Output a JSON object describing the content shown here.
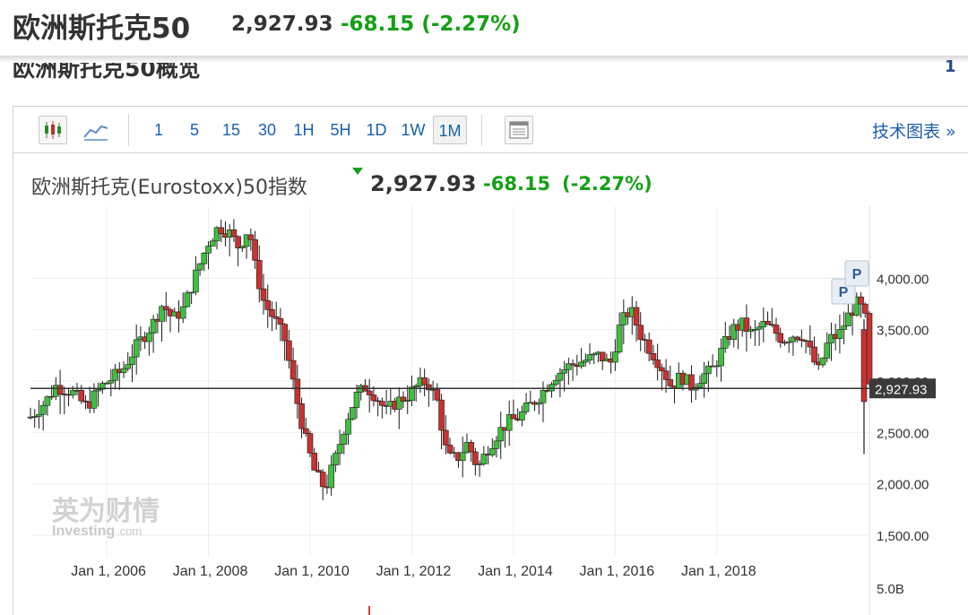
{
  "header": {
    "title": "欧洲斯托克50",
    "price": "2,927.93",
    "change": "-68.15 (-2.27%)"
  },
  "section": {
    "title": "欧洲斯托克50概览",
    "page_indicator": "1"
  },
  "toolbar": {
    "intervals": [
      "1",
      "5",
      "15",
      "30",
      "1H",
      "5H",
      "1D",
      "1W",
      "1M"
    ],
    "selected_interval": "1M",
    "tech_link": "技术图表 »"
  },
  "chart_header": {
    "name": "欧洲斯托克(Eurostoxx)50指数",
    "price": "2,927.93",
    "change": "-68.15",
    "change_pct": "(-2.27%)"
  },
  "watermark": {
    "cn": "英为财情",
    "en": "Investing",
    "suffix": ".com"
  },
  "colors": {
    "up": "#14a016",
    "down": "#e23b3b",
    "accent": "#1b5fad"
  },
  "chart_data": {
    "type": "candlestick",
    "x_tick_labels": [
      "Jan 1, 2006",
      "Jan 1, 2008",
      "Jan 1, 2010",
      "Jan 1, 2012",
      "Jan 1, 2014",
      "Jan 1, 2016",
      "Jan 1, 2018"
    ],
    "y_tick_labels": [
      "4,000.00",
      "3,500.00",
      "3,000.00",
      "2,500.00",
      "2,000.00",
      "1,500.00"
    ],
    "y_ticks": [
      4000,
      3500,
      3000,
      2500,
      2000,
      1500
    ],
    "ylim": [
      1300,
      4700
    ],
    "xlim": [
      2004.5,
      2021.0
    ],
    "current_price_label": "2,927.93",
    "current_price": 2927.93,
    "volume_label": "5.0B",
    "markers": [
      "P",
      "P"
    ],
    "series_close": [
      {
        "t": 2004.5,
        "v": 2650
      },
      {
        "t": 2004.8,
        "v": 2800
      },
      {
        "t": 2005.0,
        "v": 2950
      },
      {
        "t": 2005.3,
        "v": 2900
      },
      {
        "t": 2005.6,
        "v": 2750
      },
      {
        "t": 2005.9,
        "v": 2950
      },
      {
        "t": 2006.3,
        "v": 3100
      },
      {
        "t": 2006.6,
        "v": 3350
      },
      {
        "t": 2006.9,
        "v": 3550
      },
      {
        "t": 2007.1,
        "v": 3750
      },
      {
        "t": 2007.3,
        "v": 3600
      },
      {
        "t": 2007.5,
        "v": 3700
      },
      {
        "t": 2007.8,
        "v": 4100
      },
      {
        "t": 2008.0,
        "v": 4350
      },
      {
        "t": 2008.2,
        "v": 4500
      },
      {
        "t": 2008.4,
        "v": 4450
      },
      {
        "t": 2008.6,
        "v": 4300
      },
      {
        "t": 2008.8,
        "v": 4500
      },
      {
        "t": 2008.9,
        "v": 4150
      },
      {
        "t": 2009.1,
        "v": 3750
      },
      {
        "t": 2009.3,
        "v": 3600
      },
      {
        "t": 2009.5,
        "v": 3400
      },
      {
        "t": 2009.7,
        "v": 2900
      },
      {
        "t": 2009.9,
        "v": 2450
      },
      {
        "t": 2010.1,
        "v": 2100
      },
      {
        "t": 2010.3,
        "v": 1950
      },
      {
        "t": 2010.5,
        "v": 2250
      },
      {
        "t": 2010.7,
        "v": 2600
      },
      {
        "t": 2010.9,
        "v": 2850
      },
      {
        "t": 2011.1,
        "v": 2950
      },
      {
        "t": 2011.3,
        "v": 2850
      },
      {
        "t": 2011.5,
        "v": 2700
      },
      {
        "t": 2011.7,
        "v": 2800
      },
      {
        "t": 2011.9,
        "v": 2850
      },
      {
        "t": 2012.1,
        "v": 2950
      },
      {
        "t": 2012.3,
        "v": 3000
      },
      {
        "t": 2012.5,
        "v": 2800
      },
      {
        "t": 2012.7,
        "v": 2250
      },
      {
        "t": 2012.9,
        "v": 2250
      },
      {
        "t": 2013.1,
        "v": 2400
      },
      {
        "t": 2013.3,
        "v": 2150
      },
      {
        "t": 2013.5,
        "v": 2350
      },
      {
        "t": 2013.7,
        "v": 2500
      },
      {
        "t": 2013.9,
        "v": 2600
      },
      {
        "t": 2014.1,
        "v": 2650
      },
      {
        "t": 2014.3,
        "v": 2750
      },
      {
        "t": 2014.5,
        "v": 2850
      },
      {
        "t": 2014.8,
        "v": 3050
      },
      {
        "t": 2015.1,
        "v": 3150
      },
      {
        "t": 2015.4,
        "v": 3200
      },
      {
        "t": 2015.7,
        "v": 3250
      },
      {
        "t": 2015.9,
        "v": 3150
      },
      {
        "t": 2016.1,
        "v": 3550
      },
      {
        "t": 2016.3,
        "v": 3700
      },
      {
        "t": 2016.5,
        "v": 3450
      },
      {
        "t": 2016.7,
        "v": 3300
      },
      {
        "t": 2016.9,
        "v": 3150
      },
      {
        "t": 2017.1,
        "v": 2950
      },
      {
        "t": 2017.3,
        "v": 3050
      },
      {
        "t": 2017.5,
        "v": 2950
      },
      {
        "t": 2017.7,
        "v": 3050
      },
      {
        "t": 2017.9,
        "v": 3100
      },
      {
        "t": 2018.1,
        "v": 3300
      },
      {
        "t": 2018.3,
        "v": 3500
      },
      {
        "t": 2018.5,
        "v": 3550
      },
      {
        "t": 2018.7,
        "v": 3450
      },
      {
        "t": 2018.9,
        "v": 3550
      },
      {
        "t": 2019.1,
        "v": 3500
      },
      {
        "t": 2019.3,
        "v": 3400
      },
      {
        "t": 2019.5,
        "v": 3450
      },
      {
        "t": 2019.7,
        "v": 3450
      },
      {
        "t": 2019.9,
        "v": 3200
      },
      {
        "t": 2020.0,
        "v": 3100
      },
      {
        "t": 2020.2,
        "v": 3400
      },
      {
        "t": 2020.4,
        "v": 3450
      },
      {
        "t": 2020.6,
        "v": 3650
      },
      {
        "t": 2020.75,
        "v": 3750
      },
      {
        "t": 2020.85,
        "v": 3700
      },
      {
        "t": 2020.95,
        "v": 3550
      },
      {
        "t": 2021.0,
        "v": 2930
      }
    ]
  }
}
